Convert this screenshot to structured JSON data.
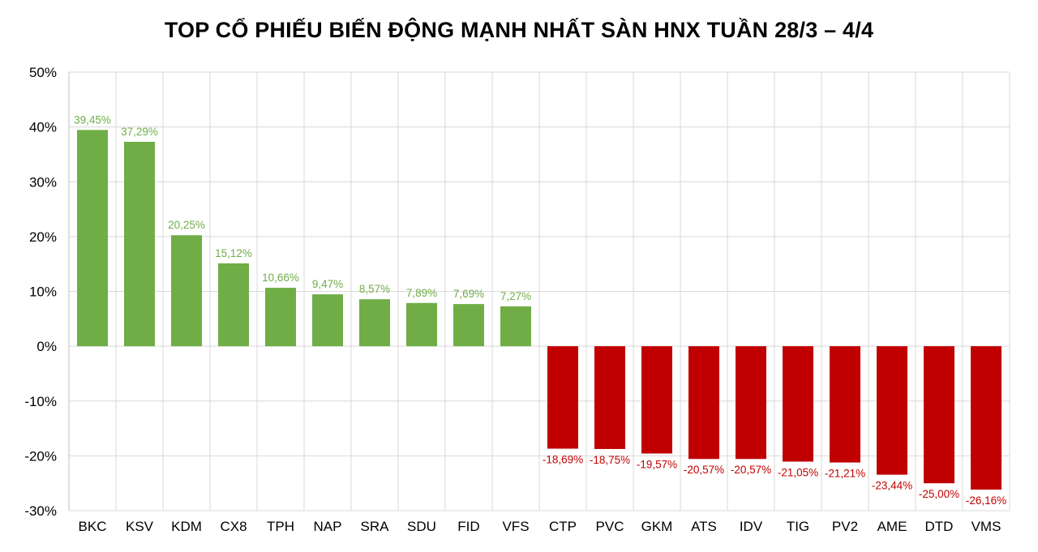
{
  "chart_data": {
    "type": "bar",
    "title": "TOP CỔ PHIẾU BIẾN ĐỘNG MẠNH NHẤT SÀN HNX TUẦN 28/3 – 4/4",
    "xlabel": "",
    "ylabel": "",
    "ylim": [
      -30,
      50
    ],
    "yticks": [
      50,
      40,
      30,
      20,
      10,
      0,
      -10,
      -20,
      -30
    ],
    "ytick_labels": [
      "50%",
      "40%",
      "30%",
      "20%",
      "10%",
      "0%",
      "-10%",
      "-20%",
      "-30%"
    ],
    "grid": true,
    "categories": [
      "BKC",
      "KSV",
      "KDM",
      "CX8",
      "TPH",
      "NAP",
      "SRA",
      "SDU",
      "FID",
      "VFS",
      "CTP",
      "PVC",
      "GKM",
      "ATS",
      "IDV",
      "TIG",
      "PV2",
      "AME",
      "DTD",
      "VMS"
    ],
    "values": [
      39.45,
      37.29,
      20.25,
      15.12,
      10.66,
      9.47,
      8.57,
      7.89,
      7.69,
      7.27,
      -18.69,
      -18.75,
      -19.57,
      -20.57,
      -20.57,
      -21.05,
      -21.21,
      -23.44,
      -25.0,
      -26.16
    ],
    "data_labels": [
      "39,45%",
      "37,29%",
      "20,25%",
      "15,12%",
      "10,66%",
      "9,47%",
      "8,57%",
      "7,89%",
      "7,69%",
      "7,27%",
      "-18,69%",
      "-18,75%",
      "-19,57%",
      "-20,57%",
      "-20,57%",
      "-21,05%",
      "-21,21%",
      "-23,44%",
      "-25,00%",
      "-26,16%"
    ],
    "colors": {
      "positive": "#70ad47",
      "negative": "#c00000",
      "grid": "#d9d9d9",
      "axis": "#bfbfbf"
    }
  }
}
